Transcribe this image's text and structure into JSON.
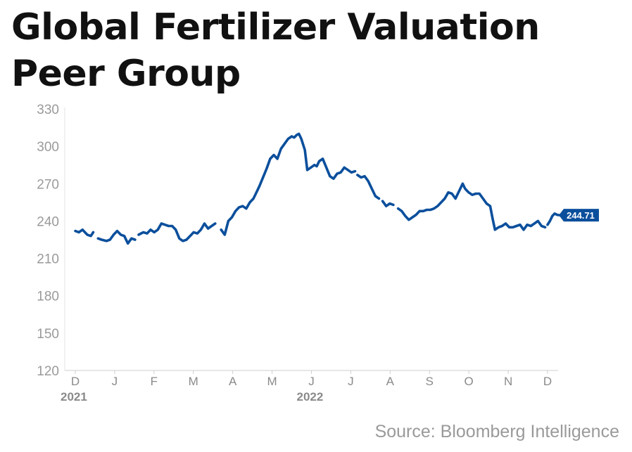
{
  "title_line1": "Global Fertilizer Valuation",
  "title_line2": "Peer Group",
  "source": "Source: Bloomberg Intelligence",
  "chart_data": {
    "type": "line",
    "title": "Global Fertilizer Valuation Peer Group",
    "ylim": [
      120,
      330
    ],
    "yticks": [
      120,
      150,
      180,
      210,
      240,
      270,
      300,
      330
    ],
    "xticks": [
      "D",
      "J",
      "F",
      "M",
      "A",
      "M",
      "J",
      "J",
      "A",
      "S",
      "O",
      "N",
      "D"
    ],
    "xrange": [
      "2021-12-01",
      "2022-12-31"
    ],
    "year_labels": [
      {
        "label": "2021",
        "tick": 0
      },
      {
        "label": "2022",
        "tick": 6
      }
    ],
    "grid": false,
    "line_color": "#0b4f9c",
    "last_value_label": "244.71",
    "series": [
      {
        "segments": [
          [
            [
              "2021-12-01",
              232
            ],
            [
              "2021-12-04",
              231
            ],
            [
              "2021-12-07",
              233
            ],
            [
              "2021-12-11",
              229
            ],
            [
              "2021-12-14",
              228
            ],
            [
              "2021-12-16",
              231
            ]
          ],
          [
            [
              "2021-12-20",
              226
            ],
            [
              "2021-12-23",
              225
            ],
            [
              "2021-12-27",
              224
            ],
            [
              "2021-12-30",
              225
            ],
            [
              "2022-01-02",
              229
            ],
            [
              "2022-01-05",
              232
            ],
            [
              "2022-01-08",
              229
            ],
            [
              "2022-01-11",
              228
            ],
            [
              "2022-01-14",
              222
            ],
            [
              "2022-01-17",
              226
            ],
            [
              "2022-01-20",
              225
            ]
          ],
          [
            [
              "2022-01-23",
              229
            ],
            [
              "2022-01-27",
              231
            ],
            [
              "2022-01-30",
              230
            ],
            [
              "2022-02-02",
              233
            ],
            [
              "2022-02-05",
              231
            ],
            [
              "2022-02-08",
              233
            ],
            [
              "2022-02-11",
              238
            ],
            [
              "2022-02-14",
              237
            ],
            [
              "2022-02-17",
              236
            ],
            [
              "2022-02-20",
              236
            ],
            [
              "2022-02-23",
              233
            ],
            [
              "2022-02-26",
              226
            ],
            [
              "2022-03-01",
              224
            ],
            [
              "2022-03-04",
              225
            ],
            [
              "2022-03-07",
              228
            ],
            [
              "2022-03-10",
              231
            ],
            [
              "2022-03-13",
              230
            ],
            [
              "2022-03-16",
              233
            ],
            [
              "2022-03-19",
              238
            ],
            [
              "2022-03-22",
              234
            ],
            [
              "2022-03-25",
              236
            ],
            [
              "2022-03-28",
              238
            ]
          ],
          [
            [
              "2022-04-02",
              233
            ],
            [
              "2022-04-05",
              229
            ],
            [
              "2022-04-08",
              240
            ],
            [
              "2022-04-11",
              243
            ],
            [
              "2022-04-14",
              248
            ],
            [
              "2022-04-17",
              251
            ],
            [
              "2022-04-20",
              252
            ],
            [
              "2022-04-23",
              250
            ],
            [
              "2022-04-26",
              255
            ],
            [
              "2022-04-29",
              258
            ],
            [
              "2022-05-01",
              262
            ],
            [
              "2022-05-04",
              268
            ],
            [
              "2022-05-07",
              275
            ],
            [
              "2022-05-10",
              282
            ],
            [
              "2022-05-13",
              290
            ],
            [
              "2022-05-16",
              293
            ],
            [
              "2022-05-19",
              290
            ],
            [
              "2022-05-22",
              298
            ],
            [
              "2022-05-25",
              302
            ],
            [
              "2022-05-28",
              306
            ],
            [
              "2022-05-31",
              308
            ],
            [
              "2022-06-02",
              307
            ],
            [
              "2022-06-04",
              309
            ],
            [
              "2022-06-06",
              310
            ],
            [
              "2022-06-08",
              306
            ],
            [
              "2022-06-11",
              297
            ],
            [
              "2022-06-13",
              281
            ],
            [
              "2022-06-16",
              283
            ],
            [
              "2022-06-19",
              285
            ],
            [
              "2022-06-21",
              284
            ],
            [
              "2022-06-23",
              288
            ],
            [
              "2022-06-26",
              290
            ],
            [
              "2022-06-29",
              283
            ],
            [
              "2022-07-02",
              276
            ],
            [
              "2022-07-05",
              274
            ],
            [
              "2022-07-08",
              278
            ],
            [
              "2022-07-11",
              279
            ],
            [
              "2022-07-14",
              283
            ],
            [
              "2022-07-17",
              281
            ],
            [
              "2022-07-20",
              279
            ],
            [
              "2022-07-23",
              280
            ]
          ],
          [
            [
              "2022-07-25",
              277
            ],
            [
              "2022-07-28",
              275
            ],
            [
              "2022-07-31",
              276
            ],
            [
              "2022-08-03",
              272
            ],
            [
              "2022-08-06",
              266
            ],
            [
              "2022-08-09",
              260
            ],
            [
              "2022-08-12",
              258
            ]
          ],
          [
            [
              "2022-08-15",
              256
            ],
            [
              "2022-08-18",
              252
            ],
            [
              "2022-08-21",
              254
            ],
            [
              "2022-08-24",
              253
            ]
          ],
          [
            [
              "2022-08-28",
              250
            ],
            [
              "2022-08-31",
              248
            ],
            [
              "2022-09-03",
              244
            ],
            [
              "2022-09-06",
              241
            ],
            [
              "2022-09-09",
              243
            ],
            [
              "2022-09-12",
              245
            ],
            [
              "2022-09-15",
              248
            ],
            [
              "2022-09-18",
              248
            ],
            [
              "2022-09-21",
              249
            ],
            [
              "2022-09-24",
              249
            ],
            [
              "2022-09-27",
              250
            ],
            [
              "2022-09-30",
              252
            ],
            [
              "2022-10-03",
              255
            ],
            [
              "2022-10-06",
              258
            ],
            [
              "2022-10-09",
              263
            ],
            [
              "2022-10-12",
              262
            ],
            [
              "2022-10-15",
              258
            ],
            [
              "2022-10-18",
              264
            ],
            [
              "2022-10-21",
              270
            ],
            [
              "2022-10-23",
              266
            ],
            [
              "2022-10-26",
              263
            ],
            [
              "2022-10-29",
              261
            ],
            [
              "2022-11-01",
              262
            ],
            [
              "2022-11-04",
              262
            ],
            [
              "2022-11-07",
              258
            ],
            [
              "2022-11-10",
              254
            ],
            [
              "2022-11-13",
              252
            ],
            [
              "2022-11-15",
              242
            ],
            [
              "2022-11-17",
              233
            ],
            [
              "2022-11-20",
              235
            ],
            [
              "2022-11-23",
              236
            ],
            [
              "2022-11-26",
              238
            ],
            [
              "2022-11-29",
              235
            ],
            [
              "2022-12-02",
              235
            ],
            [
              "2022-12-05",
              236
            ],
            [
              "2022-12-08",
              237
            ],
            [
              "2022-12-11",
              233
            ],
            [
              "2022-12-14",
              237
            ],
            [
              "2022-12-17",
              236
            ],
            [
              "2022-12-20",
              238
            ],
            [
              "2022-12-23",
              240
            ],
            [
              "2022-12-26",
              236
            ],
            [
              "2022-12-29",
              235
            ]
          ],
          [
            [
              "2022-12-31",
              237
            ],
            [
              "2023-01-02",
              240
            ],
            [
              "2023-01-04",
              244
            ],
            [
              "2023-01-06",
              246
            ],
            [
              "2023-01-08",
              245
            ],
            [
              "2023-01-10",
              244.71
            ]
          ]
        ]
      }
    ]
  }
}
